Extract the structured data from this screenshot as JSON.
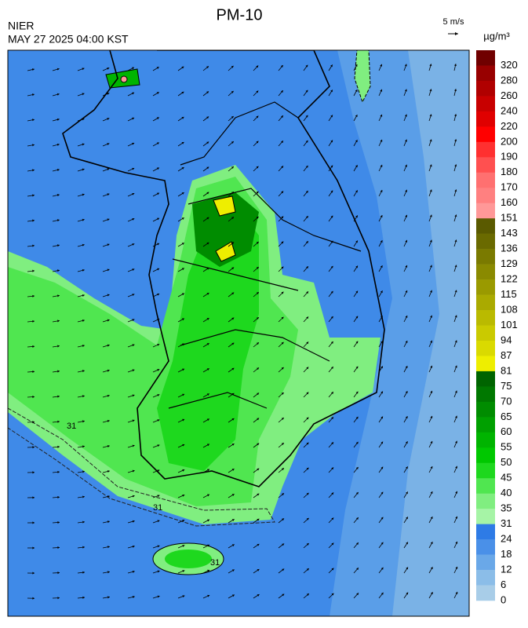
{
  "header": {
    "title": "PM-10",
    "agency": "NIER",
    "timestamp": "MAY 27 2025 04:00 KST"
  },
  "wind_scale": {
    "label": "5 m/s"
  },
  "colorbar": {
    "unit": "µg/m³",
    "labels": [
      "320",
      "280",
      "260",
      "240",
      "220",
      "200",
      "190",
      "180",
      "170",
      "160",
      "151",
      "143",
      "136",
      "129",
      "122",
      "115",
      "108",
      "101",
      "94",
      "87",
      "81",
      "75",
      "70",
      "65",
      "60",
      "55",
      "50",
      "45",
      "40",
      "35",
      "31",
      "24",
      "18",
      "12",
      "6",
      "0"
    ],
    "colors": [
      "#700000",
      "#980000",
      "#b00000",
      "#c80000",
      "#e00000",
      "#ff0000",
      "#ff3030",
      "#ff5050",
      "#ff7070",
      "#ff8080",
      "#ff9898",
      "#5a5a00",
      "#6a6a00",
      "#7a7a00",
      "#8a8a00",
      "#9a9a00",
      "#aaaa00",
      "#baba00",
      "#caca00",
      "#dada00",
      "#eeee00",
      "#006400",
      "#007800",
      "#008c00",
      "#00a000",
      "#00b400",
      "#00c800",
      "#1ed81e",
      "#50e650",
      "#80ee80",
      "#a6f4a6",
      "#2e7be6",
      "#4a90e8",
      "#6aa8e8",
      "#8bbde8",
      "#a8cde8"
    ]
  },
  "map": {
    "contour_labels": [
      "31",
      "31",
      "31"
    ]
  }
}
